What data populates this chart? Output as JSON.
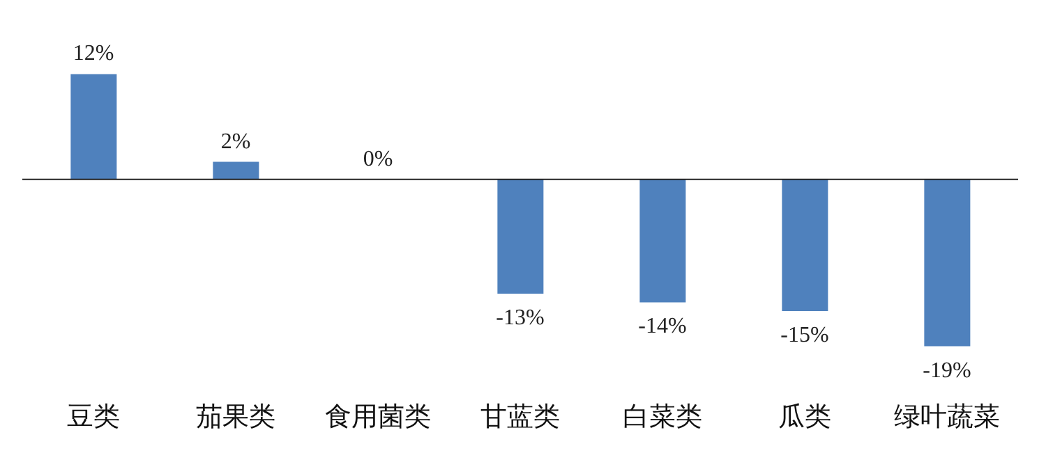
{
  "chart_data": {
    "type": "bar",
    "categories": [
      "豆类",
      "茄果类",
      "食用菌类",
      "甘蓝类",
      "白菜类",
      "瓜类",
      "绿叶蔬菜"
    ],
    "values": [
      12,
      2,
      0,
      -13,
      -14,
      -15,
      -19
    ],
    "value_labels": [
      "12%",
      "2%",
      "0%",
      "-13%",
      "-14%",
      "-15%",
      "-19%"
    ],
    "color": "#4f81bd"
  }
}
